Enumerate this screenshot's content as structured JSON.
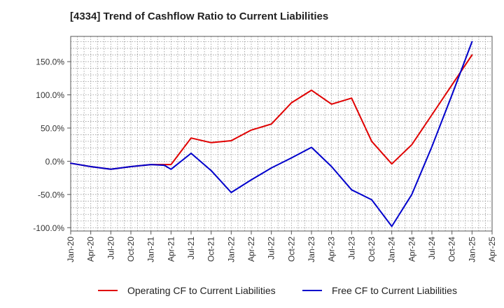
{
  "chart_data": {
    "type": "line",
    "title": "[4334]  Trend of Cashflow Ratio to Current Liabilities",
    "xlabel": "",
    "ylabel": "",
    "x": [
      "2020-01",
      "2020-04",
      "2020-07",
      "2020-10",
      "2021-01",
      "2021-04",
      "2021-07",
      "2021-10",
      "2022-01",
      "2022-04",
      "2022-07",
      "2022-10",
      "2023-01",
      "2023-04",
      "2023-07",
      "2023-10",
      "2024-01",
      "2024-04",
      "2024-07",
      "2024-10",
      "2025-01"
    ],
    "x_tick_labels": [
      "Jan-20",
      "Apr-20",
      "Jul-20",
      "Oct-20",
      "Jan-21",
      "Apr-21",
      "Jul-21",
      "Oct-21",
      "Jan-22",
      "Apr-22",
      "Jul-22",
      "Oct-22",
      "Jan-23",
      "Apr-23",
      "Jul-23",
      "Oct-23",
      "Jan-24",
      "Apr-24",
      "Jul-24",
      "Oct-24",
      "Jan-25",
      "Apr-25"
    ],
    "y_ticks": [
      -100,
      -50,
      0,
      50,
      100,
      150
    ],
    "y_tick_labels": [
      "-100.0%",
      "-50.0%",
      "0.0%",
      "50.0%",
      "100.0%",
      "150.0%"
    ],
    "ylim": [
      -105,
      188
    ],
    "grid": true,
    "legend_position": "bottom",
    "series": [
      {
        "name": "Operating CF to Current Liabilities",
        "color": "#e00000",
        "points": [
          [
            "2020-01",
            -3
          ],
          [
            "2020-04",
            -8
          ],
          [
            "2020-07",
            -12
          ],
          [
            "2020-10",
            -8
          ],
          [
            "2021-01",
            -5
          ],
          [
            "2021-04",
            -5
          ],
          [
            "2021-07",
            35
          ],
          [
            "2021-10",
            28
          ],
          [
            "2022-01",
            31
          ],
          [
            "2022-04",
            47
          ],
          [
            "2022-07",
            56
          ],
          [
            "2022-10",
            88
          ],
          [
            "2023-01",
            107
          ],
          [
            "2023-04",
            86
          ],
          [
            "2023-07",
            95
          ],
          [
            "2023-10",
            30
          ],
          [
            "2024-01",
            -4
          ],
          [
            "2024-04",
            25
          ],
          [
            "2024-07",
            70
          ],
          [
            "2024-10",
            115
          ],
          [
            "2025-01",
            160
          ]
        ]
      },
      {
        "name": "Free CF to Current Liabilities",
        "color": "#0000cc",
        "points": [
          [
            "2020-01",
            -3
          ],
          [
            "2020-04",
            -8
          ],
          [
            "2020-07",
            -12
          ],
          [
            "2020-10",
            -8
          ],
          [
            "2021-01",
            -5
          ],
          [
            "2021-03",
            -6
          ],
          [
            "2021-04",
            -12
          ],
          [
            "2021-07",
            12
          ],
          [
            "2021-10",
            -14
          ],
          [
            "2022-01",
            -47
          ],
          [
            "2022-04",
            -28
          ],
          [
            "2022-07",
            -10
          ],
          [
            "2022-10",
            5
          ],
          [
            "2023-01",
            21
          ],
          [
            "2023-04",
            -8
          ],
          [
            "2023-07",
            -43
          ],
          [
            "2023-10",
            -58
          ],
          [
            "2024-01",
            -98
          ],
          [
            "2024-04",
            -50
          ],
          [
            "2024-07",
            22
          ],
          [
            "2024-10",
            100
          ],
          [
            "2025-01",
            180
          ]
        ]
      }
    ]
  }
}
